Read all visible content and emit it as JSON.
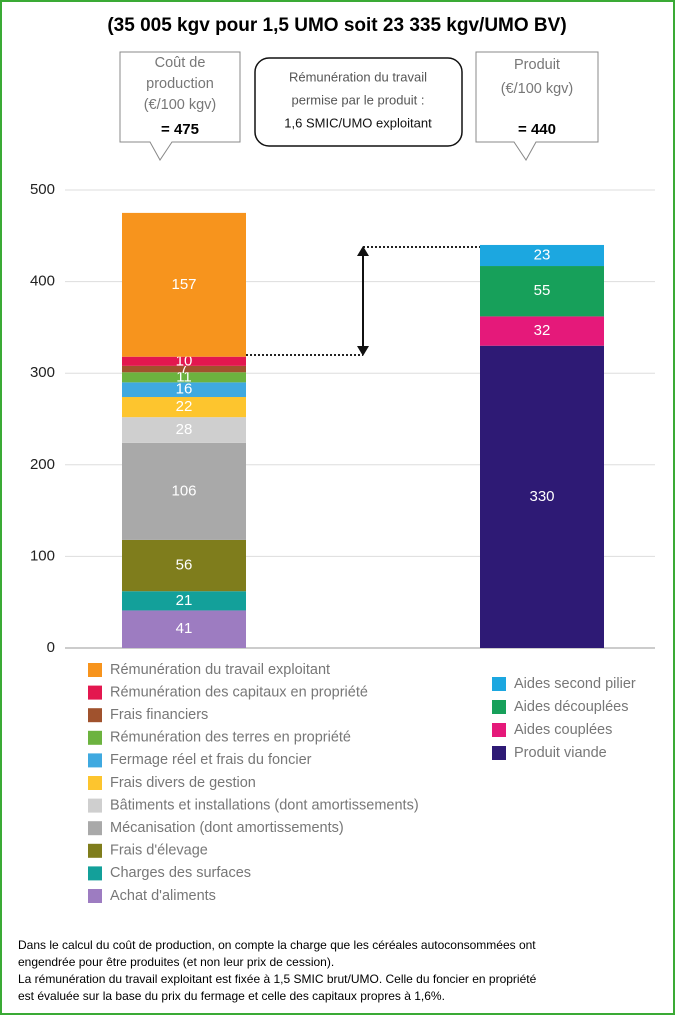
{
  "chart_data": {
    "type": "bar",
    "stacked": true,
    "title": "(35 005 kgv pour 1,5 UMO soit 23 335 kgv/UMO BV)",
    "categories": [
      null,
      null
    ],
    "ylim": [
      0,
      520
    ],
    "yticks": [
      0,
      100,
      200,
      300,
      400,
      500
    ],
    "grid": true,
    "series": [
      {
        "name": "Rémunération du travail exploitant",
        "color": "#f7941d",
        "values": [
          157,
          null
        ]
      },
      {
        "name": "Rémunération des capitaux en propriété",
        "color": "#e3174f",
        "values": [
          10,
          null
        ]
      },
      {
        "name": "Frais financiers",
        "color": "#a0522d",
        "values": [
          7,
          null
        ]
      },
      {
        "name": "Rémunération des terres en propriété",
        "color": "#6cb33f",
        "values": [
          11,
          null
        ]
      },
      {
        "name": "Fermage réel et frais du foncier",
        "color": "#3fa9e0",
        "values": [
          16,
          null
        ]
      },
      {
        "name": "Frais divers de gestion",
        "color": "#fdc52e",
        "values": [
          22,
          null
        ]
      },
      {
        "name": "Bâtiments et installations (dont amortissements)",
        "color": "#cfcfcf",
        "values": [
          28,
          null
        ]
      },
      {
        "name": "Mécanisation (dont amortissements)",
        "color": "#a9a9a9",
        "values": [
          106,
          null
        ]
      },
      {
        "name": "Frais d'élevage",
        "color": "#7f7d1c",
        "values": [
          56,
          null
        ]
      },
      {
        "name": "Charges des surfaces",
        "color": "#13a09a",
        "values": [
          21,
          null
        ]
      },
      {
        "name": "Achat d'aliments",
        "color": "#9d7cc1",
        "values": [
          41,
          null
        ]
      },
      {
        "name": "Aides second pilier",
        "color": "#1ca7e0",
        "values": [
          null,
          23
        ]
      },
      {
        "name": "Aides découplées",
        "color": "#17a05a",
        "values": [
          null,
          55
        ]
      },
      {
        "name": "Aides couplées",
        "color": "#e5197a",
        "values": [
          null,
          32
        ]
      },
      {
        "name": "Produit viande",
        "color": "#2e1a75",
        "values": [
          null,
          330
        ]
      }
    ],
    "annotations": {
      "cost_box": [
        "Coût de",
        "production",
        "(€/100 kgv)",
        "= 475"
      ],
      "work_box": [
        "Rémunération du travail",
        "permise par le produit :",
        "1,6 SMIC/UMO exploitant"
      ],
      "product_box": [
        "Produit",
        "(€/100 kgv)",
        "= 440"
      ]
    },
    "footnote": [
      "Dans le calcul du coût de production, on compte la charge que les céréales autoconsommées ont",
      "engendrée pour être produites (et non leur prix de cession).",
      "La rémunération du travail exploitant est fixée à 1,5 SMIC brut/UMO. Celle du foncier en propriété",
      "est évaluée sur la base du prix du fermage et celle des capitaux propres à 1,6%."
    ]
  }
}
